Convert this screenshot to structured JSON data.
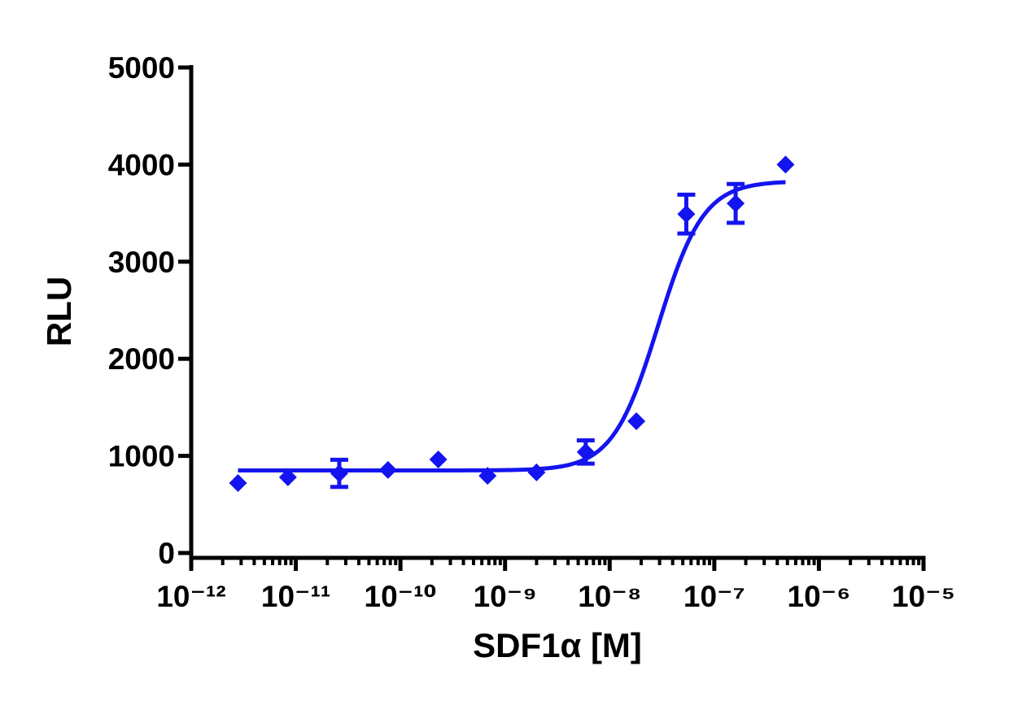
{
  "chart_data": {
    "type": "scatter",
    "x_label": "SDF1α  [M]",
    "y_label": "RLU",
    "xscale": "log",
    "xlim": [
      1e-12,
      1e-05
    ],
    "ylim": [
      0,
      5000
    ],
    "xticks": [
      {
        "value": 1e-12,
        "label": "10⁻¹²"
      },
      {
        "value": 1e-11,
        "label": "10⁻¹¹"
      },
      {
        "value": 1e-10,
        "label": "10⁻¹⁰"
      },
      {
        "value": 1e-09,
        "label": "10⁻⁹"
      },
      {
        "value": 1e-08,
        "label": "10⁻⁸"
      },
      {
        "value": 1e-07,
        "label": "10⁻⁷"
      },
      {
        "value": 1e-06,
        "label": "10⁻⁶"
      },
      {
        "value": 1e-05,
        "label": "10⁻⁵"
      }
    ],
    "xminorticks": [
      2e-12,
      3e-12,
      4e-12,
      5e-12,
      6e-12,
      7e-12,
      8e-12,
      9e-12,
      2e-11,
      3e-11,
      4e-11,
      5e-11,
      6e-11,
      7e-11,
      8e-11,
      9e-11,
      2e-10,
      3e-10,
      4e-10,
      5e-10,
      6e-10,
      7e-10,
      8e-10,
      9e-10,
      2e-09,
      3e-09,
      4e-09,
      5e-09,
      6e-09,
      7e-09,
      8e-09,
      9e-09,
      2e-08,
      3e-08,
      4e-08,
      5e-08,
      6e-08,
      7e-08,
      8e-08,
      9e-08,
      2e-07,
      3e-07,
      4e-07,
      5e-07,
      6e-07,
      7e-07,
      8e-07,
      9e-07,
      2e-06,
      3e-06,
      4e-06,
      5e-06,
      6e-06,
      7e-06,
      8e-06,
      9e-06
    ],
    "yticks": [
      0,
      1000,
      2000,
      3000,
      4000,
      5000
    ],
    "color": "#1414f0",
    "x": [
      2.8e-12,
      8.4e-12,
      2.6e-11,
      7.6e-11,
      2.3e-10,
      6.8e-10,
      2e-09,
      5.9e-09,
      1.8e-08,
      5.4e-08,
      1.6e-07,
      4.8e-07
    ],
    "values": [
      720,
      780,
      820,
      855,
      963,
      795,
      830,
      1040,
      1357,
      3490,
      3600,
      4000
    ],
    "errors": [
      null,
      null,
      140,
      null,
      null,
      null,
      null,
      120,
      null,
      200,
      200,
      null
    ],
    "curve": {
      "bottom": 850,
      "top": 3830,
      "ec50": 2.9e-08,
      "hill": 2.0,
      "x_range": [
        2.8e-12,
        4.8e-07
      ]
    }
  }
}
